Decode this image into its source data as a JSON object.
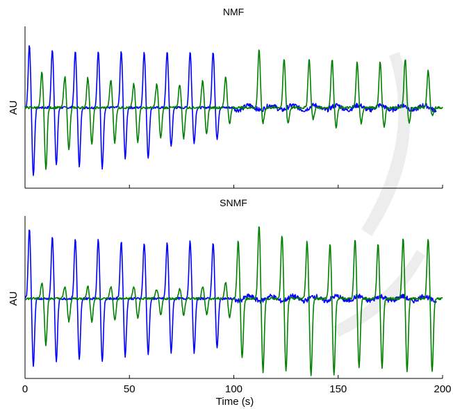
{
  "chart_data": [
    {
      "type": "line",
      "title": "NMF",
      "xlabel": "",
      "ylabel": "AU",
      "xlim": [
        0,
        200
      ],
      "ylim": [
        -1.0,
        1.0
      ],
      "x_ticks": [
        "",
        "",
        "",
        "",
        ""
      ],
      "grid": false,
      "series": [
        {
          "color": "#0000ff",
          "segment": [
            0,
            100
          ],
          "spike_times": [
            3,
            14,
            25,
            36,
            47,
            58,
            69,
            80,
            91
          ],
          "spike_up": [
            0.8,
            0.75,
            0.72,
            0.72,
            0.72,
            0.72,
            0.72,
            0.72,
            0.72
          ],
          "spike_down": [
            -0.88,
            -0.75,
            -0.75,
            -0.78,
            -0.65,
            -0.65,
            -0.5,
            -0.45,
            -0.4
          ]
        },
        {
          "color": "#008000",
          "segment": [
            0,
            200
          ],
          "spike_times": [
            9,
            20,
            31,
            42,
            53,
            64,
            75,
            86,
            97,
            113,
            125,
            137,
            148,
            160,
            171,
            183,
            194
          ],
          "spike_up": [
            0.45,
            0.4,
            0.38,
            0.35,
            0.3,
            0.3,
            0.3,
            0.35,
            0.4,
            0.75,
            0.62,
            0.62,
            0.62,
            0.58,
            0.58,
            0.62,
            0.48
          ],
          "spike_down": [
            -0.8,
            -0.55,
            -0.48,
            -0.45,
            -0.45,
            -0.4,
            -0.4,
            -0.35,
            -0.2,
            -0.2,
            -0.2,
            -0.15,
            -0.25,
            -0.2,
            -0.25,
            -0.2,
            -0.1
          ]
        }
      ]
    },
    {
      "type": "line",
      "title": "SNMF",
      "xlabel": "Time (s)",
      "ylabel": "AU",
      "xlim": [
        0,
        200
      ],
      "ylim": [
        -1.0,
        1.0
      ],
      "x_ticks": [
        "0",
        "50",
        "100",
        "150",
        "200"
      ],
      "x_tick_values": [
        0,
        50,
        100,
        150,
        200
      ],
      "grid": false,
      "series": [
        {
          "color": "#0000ff",
          "segment": [
            0,
            100
          ],
          "spike_times": [
            3,
            14,
            25,
            36,
            47,
            58,
            69,
            80,
            91
          ],
          "spike_up": [
            0.88,
            0.78,
            0.75,
            0.75,
            0.72,
            0.7,
            0.7,
            0.72,
            0.7
          ],
          "spike_down": [
            -0.88,
            -0.82,
            -0.8,
            -0.82,
            -0.75,
            -0.72,
            -0.7,
            -0.7,
            -0.65
          ]
        },
        {
          "color": "#008000",
          "segment": [
            0,
            200
          ],
          "spike_times": [
            9,
            20,
            31,
            42,
            53,
            64,
            75,
            86,
            97,
            103,
            113,
            124,
            136,
            147,
            159,
            170,
            182,
            194
          ],
          "spike_up": [
            0.2,
            0.15,
            0.15,
            0.15,
            0.15,
            0.12,
            0.12,
            0.15,
            0.2,
            0.72,
            0.92,
            0.8,
            0.72,
            0.68,
            0.75,
            0.7,
            0.75,
            0.75
          ],
          "spike_down": [
            -0.6,
            -0.3,
            -0.3,
            -0.28,
            -0.25,
            -0.22,
            -0.22,
            -0.2,
            -0.25,
            -0.78,
            -0.95,
            -0.95,
            -1.0,
            -1.0,
            -0.9,
            -0.9,
            -0.95,
            -0.95
          ]
        }
      ]
    }
  ]
}
